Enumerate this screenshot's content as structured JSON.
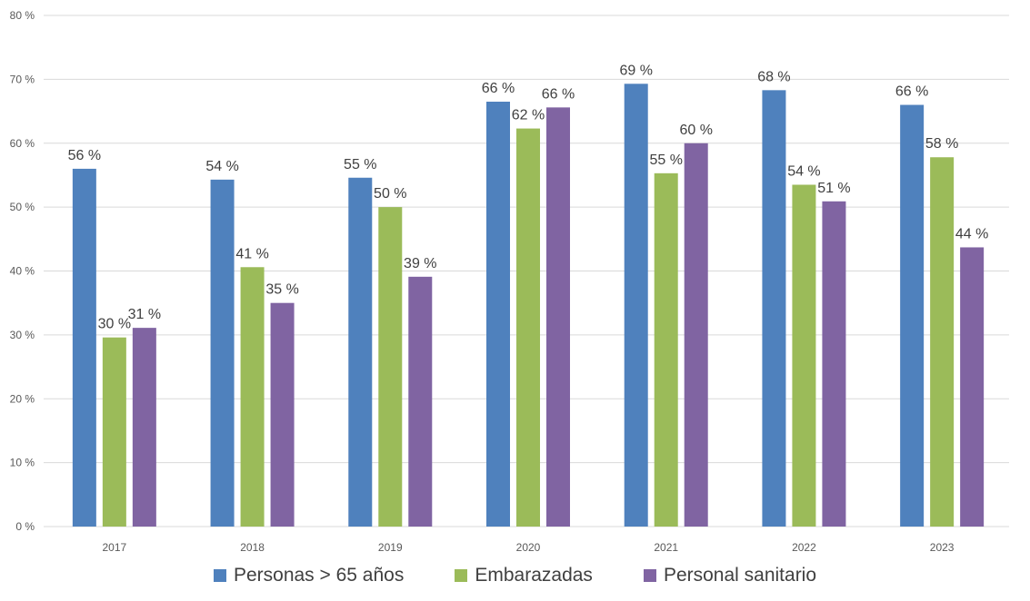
{
  "chart_data": {
    "type": "bar",
    "title": "",
    "xlabel": "",
    "ylabel": "",
    "ylim": [
      0,
      80
    ],
    "y_ticks": [
      "0 %",
      "10 %",
      "20 %",
      "30 %",
      "40 %",
      "50 %",
      "60 %",
      "70 %",
      "80 %"
    ],
    "grid": true,
    "legend_position": "bottom",
    "categories": [
      "2017",
      "2018",
      "2019",
      "2020",
      "2021",
      "2022",
      "2023"
    ],
    "series": [
      {
        "name": "Personas > 65 años",
        "color": "#4f81bd",
        "values": [
          56.0,
          54.3,
          54.6,
          66.5,
          69.3,
          68.3,
          66.0
        ],
        "labels": [
          "56 %",
          "54 %",
          "55 %",
          "66 %",
          "69 %",
          "68 %",
          "66 %"
        ]
      },
      {
        "name": "Embarazadas",
        "color": "#9bbb59",
        "values": [
          29.6,
          40.6,
          50.0,
          62.3,
          55.3,
          53.5,
          57.8
        ],
        "labels": [
          "30 %",
          "41 %",
          "50 %",
          "62 %",
          "55 %",
          "54 %",
          "58 %"
        ]
      },
      {
        "name": "Personal sanitario",
        "color": "#8064a2",
        "values": [
          31.1,
          35.0,
          39.1,
          65.6,
          60.0,
          50.9,
          43.7
        ],
        "labels": [
          "31 %",
          "35 %",
          "39 %",
          "66 %",
          "60 %",
          "51 %",
          "44 %"
        ]
      }
    ]
  }
}
